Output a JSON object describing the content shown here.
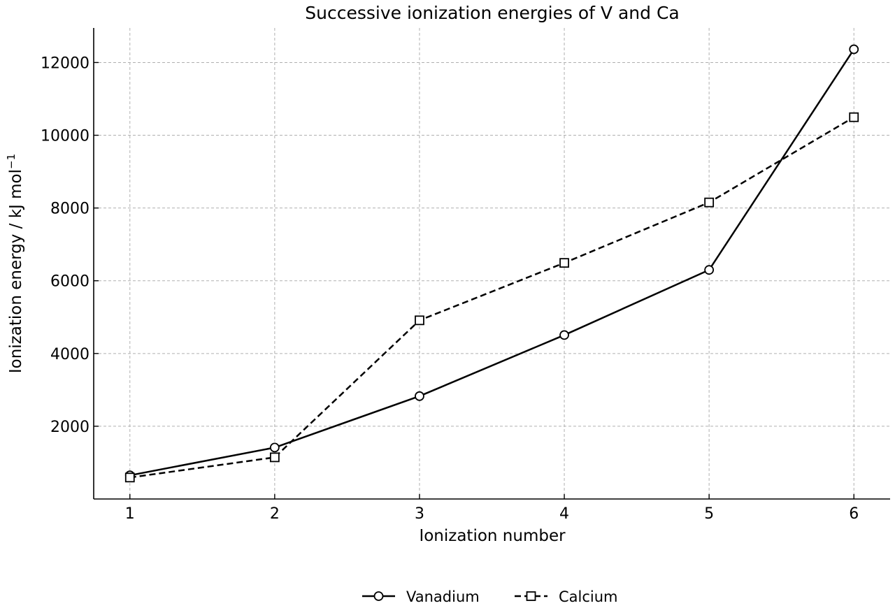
{
  "chart_data": {
    "type": "line",
    "title": "Successive ionization energies of V and Ca",
    "xlabel": "Ionization number",
    "ylabel": "Ionization energy / kJ mol",
    "ylabel_sup": "−1",
    "x": [
      1,
      2,
      3,
      4,
      5,
      6
    ],
    "x_ticks": [
      "1",
      "2",
      "3",
      "4",
      "5",
      "6"
    ],
    "xlim": [
      0.75,
      6.25
    ],
    "y_ticks": [
      "2000",
      "4000",
      "6000",
      "8000",
      "10000",
      "12000"
    ],
    "y_tick_values": [
      2000,
      4000,
      6000,
      8000,
      10000,
      12000
    ],
    "ylim": [
      0,
      12950
    ],
    "grid": true,
    "legend_position": "bottom-center",
    "series": [
      {
        "name": "Vanadium",
        "values": [
          650,
          1414,
          2828,
          4507,
          6298,
          12363
        ],
        "color": "#000000",
        "line_style": "solid",
        "marker": "circle"
      },
      {
        "name": "Calcium",
        "values": [
          590,
          1145,
          4912,
          6491,
          8153,
          10496
        ],
        "color": "#000000",
        "line_style": "dashed",
        "marker": "square"
      }
    ]
  }
}
